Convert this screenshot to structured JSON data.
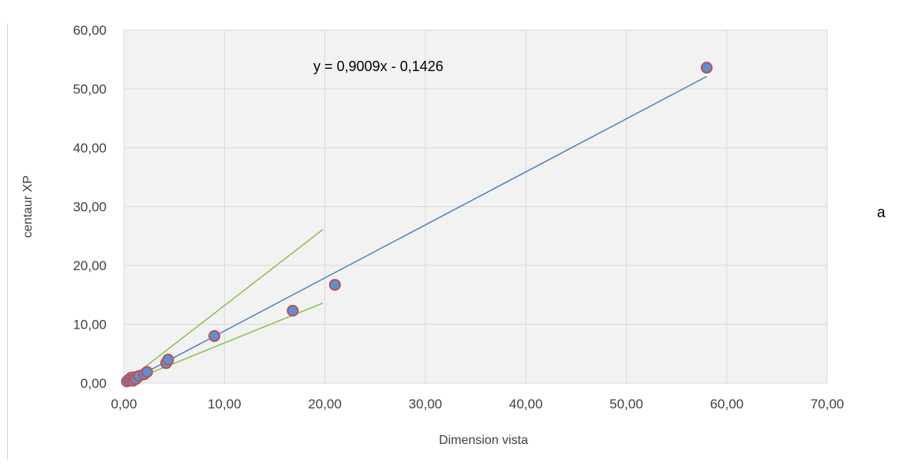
{
  "chart_data": {
    "type": "scatter",
    "title": "",
    "xlabel": "Dimension vista",
    "ylabel": "centaur XP",
    "xlim": [
      0,
      70
    ],
    "ylim": [
      0,
      60
    ],
    "x_ticks": [
      0,
      10,
      20,
      30,
      40,
      50,
      60,
      70
    ],
    "y_ticks": [
      0,
      10,
      20,
      30,
      40,
      50,
      60
    ],
    "x_tick_labels": [
      "0,00",
      "10,00",
      "20,00",
      "30,00",
      "40,00",
      "50,00",
      "60,00",
      "70,00"
    ],
    "y_tick_labels": [
      "0,00",
      "10,00",
      "20,00",
      "30,00",
      "40,00",
      "50,00",
      "60,00"
    ],
    "grid": true,
    "legend": "none",
    "colors": {
      "marker_fill": "#5b8fd6",
      "marker_edge": "#c0504d",
      "trendline": "#4f81bd",
      "bounds": "#8cc04a",
      "grid": "#d9d9d9",
      "plot_background": "#f2f2f2"
    },
    "series": [
      {
        "points": [
          {
            "x": 0.3,
            "y": 0.3
          },
          {
            "x": 0.5,
            "y": 0.6
          },
          {
            "x": 0.7,
            "y": 0.9
          },
          {
            "x": 0.9,
            "y": 0.4
          },
          {
            "x": 1.0,
            "y": 1.0
          },
          {
            "x": 1.2,
            "y": 0.7
          },
          {
            "x": 1.5,
            "y": 1.2
          },
          {
            "x": 2.0,
            "y": 1.5
          },
          {
            "x": 2.3,
            "y": 1.9
          },
          {
            "x": 4.2,
            "y": 3.4
          },
          {
            "x": 4.4,
            "y": 4.0
          },
          {
            "x": 9.0,
            "y": 8.0
          },
          {
            "x": 16.8,
            "y": 12.3
          },
          {
            "x": 21.0,
            "y": 16.7
          },
          {
            "x": 58.0,
            "y": 53.6
          }
        ]
      }
    ],
    "trendline": {
      "slope": 0.9009,
      "intercept": -0.1426,
      "x_range": [
        0.3,
        58.0
      ],
      "equation_label": "y = 0,9009x - 0,1426"
    },
    "bound_lines": [
      {
        "x": [
          1.0,
          19.8
        ],
        "y": [
          1.3,
          26.1
        ]
      },
      {
        "x": [
          1.0,
          19.8
        ],
        "y": [
          0.6,
          13.6
        ]
      }
    ],
    "annotations": [
      {
        "text": "a"
      }
    ]
  }
}
